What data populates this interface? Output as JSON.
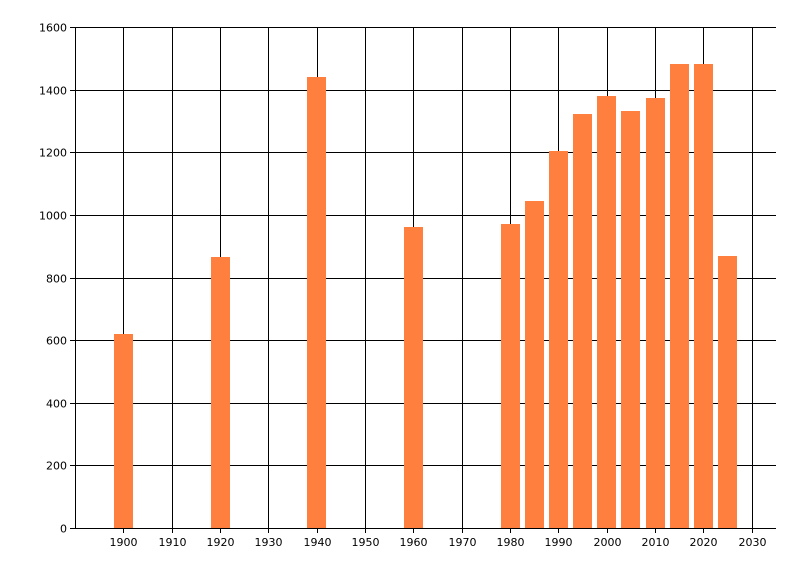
{
  "chart_data": {
    "type": "bar",
    "title": "",
    "xlabel": "",
    "ylabel": "",
    "x": [
      1900,
      1920,
      1940,
      1960,
      1980,
      1985,
      1990,
      1995,
      2000,
      2005,
      2010,
      2015,
      2020,
      2025
    ],
    "values": [
      618,
      865,
      1439,
      960,
      970,
      1045,
      1205,
      1322,
      1380,
      1333,
      1374,
      1482,
      1483,
      870
    ],
    "xlim": [
      1890,
      2035
    ],
    "ylim": [
      0,
      1600
    ],
    "x_ticks": [
      1900,
      1910,
      1920,
      1930,
      1940,
      1950,
      1960,
      1970,
      1980,
      1990,
      2000,
      2010,
      2020,
      2030
    ],
    "y_ticks": [
      0,
      200,
      400,
      600,
      800,
      1000,
      1200,
      1400,
      1600
    ],
    "grid": true,
    "legend": "none",
    "bar_color": "#ff7f3f"
  }
}
